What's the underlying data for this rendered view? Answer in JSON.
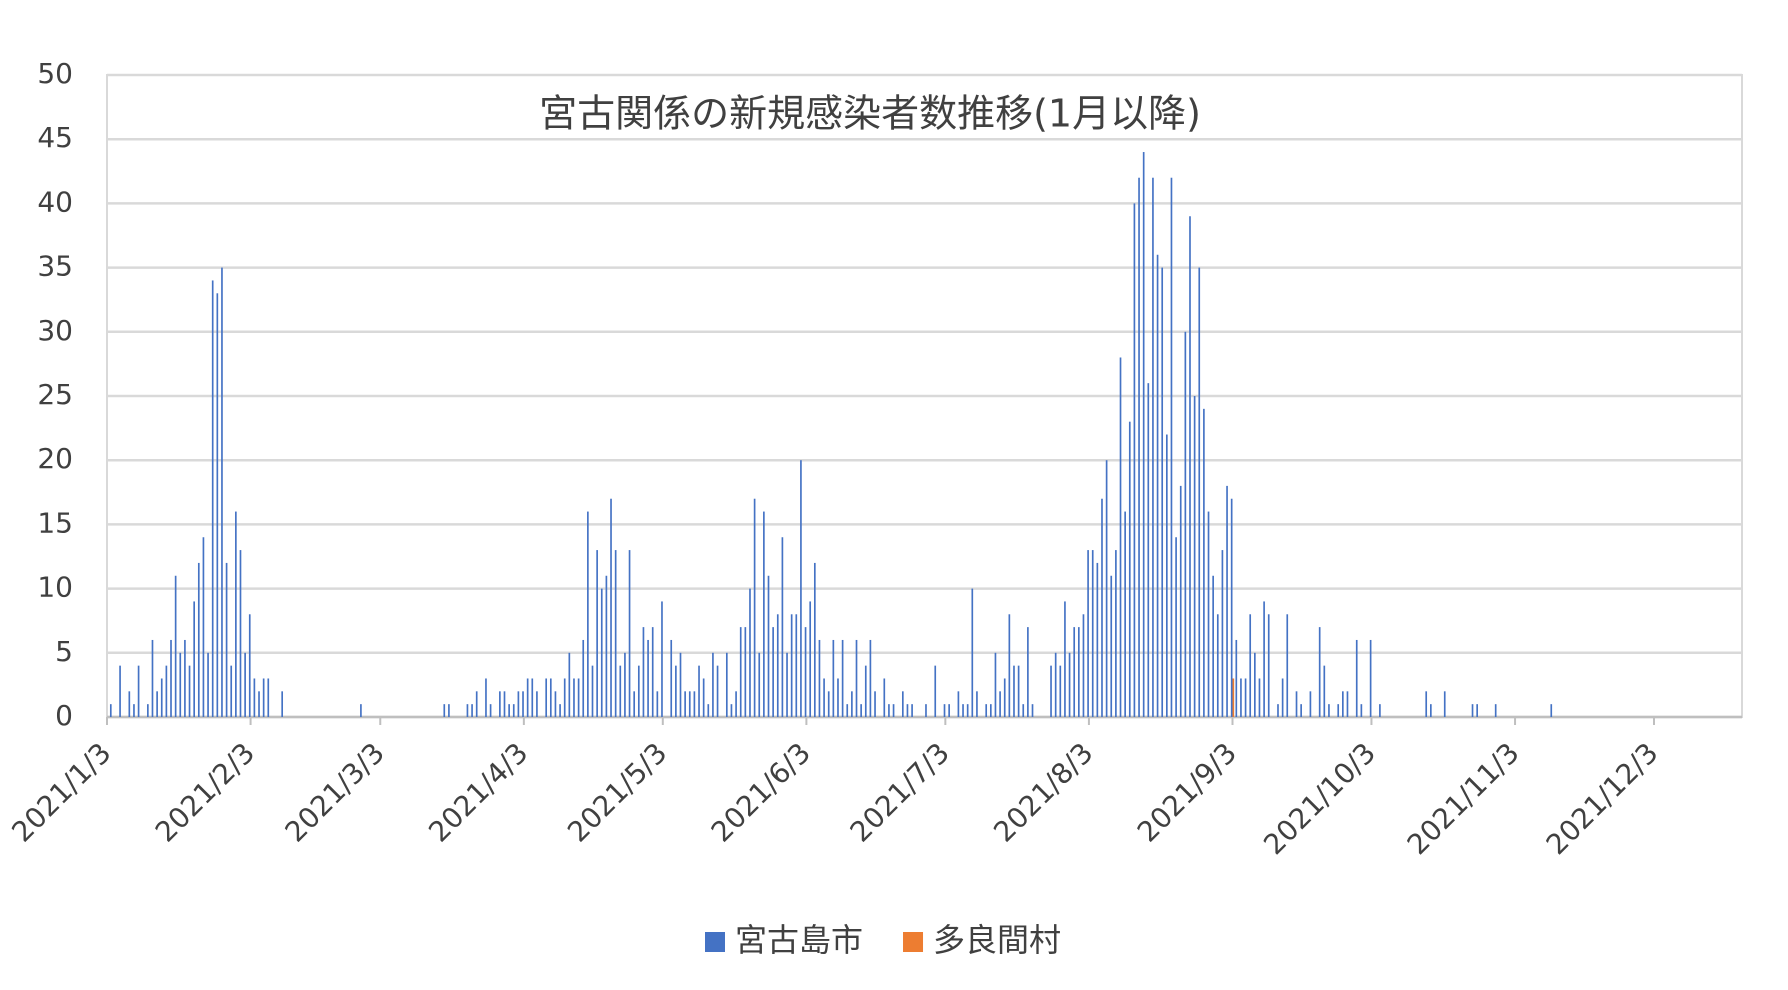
{
  "chart_data": {
    "type": "bar",
    "title": "宮古関係の新規感染者数推移(1月以降)",
    "xlim": [
      "2021/1/3",
      "2021/12/22"
    ],
    "xticks": [
      "2021/1/3",
      "2021/2/3",
      "2021/3/3",
      "2021/4/3",
      "2021/5/3",
      "2021/6/3",
      "2021/7/3",
      "2021/8/3",
      "2021/9/3",
      "2021/10/3",
      "2021/11/3",
      "2021/12/3"
    ],
    "ylim": [
      0,
      50
    ],
    "yticks": [
      0,
      5,
      10,
      15,
      20,
      25,
      30,
      35,
      40,
      45,
      50
    ],
    "grid": true,
    "legend": "bottom",
    "series": [
      {
        "name": "宮古島市",
        "color": "#4472c4",
        "x": [
          "2021/1/4",
          "2021/1/6",
          "2021/1/8",
          "2021/1/9",
          "2021/1/10",
          "2021/1/12",
          "2021/1/13",
          "2021/1/14",
          "2021/1/15",
          "2021/1/16",
          "2021/1/17",
          "2021/1/18",
          "2021/1/19",
          "2021/1/20",
          "2021/1/21",
          "2021/1/22",
          "2021/1/23",
          "2021/1/24",
          "2021/1/25",
          "2021/1/26",
          "2021/1/27",
          "2021/1/28",
          "2021/1/29",
          "2021/1/30",
          "2021/1/31",
          "2021/2/1",
          "2021/2/2",
          "2021/2/3",
          "2021/2/4",
          "2021/2/5",
          "2021/2/6",
          "2021/2/7",
          "2021/2/10",
          "2021/2/27",
          "2021/3/17",
          "2021/3/18",
          "2021/3/22",
          "2021/3/23",
          "2021/3/24",
          "2021/3/26",
          "2021/3/27",
          "2021/3/29",
          "2021/3/30",
          "2021/3/31",
          "2021/4/1",
          "2021/4/2",
          "2021/4/3",
          "2021/4/4",
          "2021/4/5",
          "2021/4/6",
          "2021/4/8",
          "2021/4/9",
          "2021/4/10",
          "2021/4/11",
          "2021/4/12",
          "2021/4/13",
          "2021/4/14",
          "2021/4/15",
          "2021/4/16",
          "2021/4/17",
          "2021/4/18",
          "2021/4/19",
          "2021/4/20",
          "2021/4/21",
          "2021/4/22",
          "2021/4/23",
          "2021/4/24",
          "2021/4/25",
          "2021/4/26",
          "2021/4/27",
          "2021/4/28",
          "2021/4/29",
          "2021/4/30",
          "2021/5/1",
          "2021/5/2",
          "2021/5/3",
          "2021/5/5",
          "2021/5/6",
          "2021/5/7",
          "2021/5/8",
          "2021/5/9",
          "2021/5/10",
          "2021/5/11",
          "2021/5/12",
          "2021/5/13",
          "2021/5/14",
          "2021/5/15",
          "2021/5/17",
          "2021/5/18",
          "2021/5/19",
          "2021/5/20",
          "2021/5/21",
          "2021/5/22",
          "2021/5/23",
          "2021/5/24",
          "2021/5/25",
          "2021/5/26",
          "2021/5/27",
          "2021/5/28",
          "2021/5/29",
          "2021/5/30",
          "2021/5/31",
          "2021/6/1",
          "2021/6/2",
          "2021/6/3",
          "2021/6/4",
          "2021/6/5",
          "2021/6/6",
          "2021/6/7",
          "2021/6/8",
          "2021/6/9",
          "2021/6/10",
          "2021/6/11",
          "2021/6/12",
          "2021/6/13",
          "2021/6/14",
          "2021/6/15",
          "2021/6/16",
          "2021/6/17",
          "2021/6/18",
          "2021/6/20",
          "2021/6/21",
          "2021/6/22",
          "2021/6/24",
          "2021/6/25",
          "2021/6/26",
          "2021/6/29",
          "2021/7/1",
          "2021/7/3",
          "2021/7/4",
          "2021/7/6",
          "2021/7/7",
          "2021/7/8",
          "2021/7/9",
          "2021/7/10",
          "2021/7/12",
          "2021/7/13",
          "2021/7/14",
          "2021/7/15",
          "2021/7/16",
          "2021/7/17",
          "2021/7/18",
          "2021/7/19",
          "2021/7/20",
          "2021/7/21",
          "2021/7/22",
          "2021/7/26",
          "2021/7/27",
          "2021/7/28",
          "2021/7/29",
          "2021/7/30",
          "2021/7/31",
          "2021/8/1",
          "2021/8/2",
          "2021/8/3",
          "2021/8/4",
          "2021/8/5",
          "2021/8/6",
          "2021/8/7",
          "2021/8/8",
          "2021/8/9",
          "2021/8/10",
          "2021/8/11",
          "2021/8/12",
          "2021/8/13",
          "2021/8/14",
          "2021/8/15",
          "2021/8/16",
          "2021/8/17",
          "2021/8/18",
          "2021/8/19",
          "2021/8/20",
          "2021/8/21",
          "2021/8/22",
          "2021/8/23",
          "2021/8/24",
          "2021/8/25",
          "2021/8/26",
          "2021/8/27",
          "2021/8/28",
          "2021/8/29",
          "2021/8/30",
          "2021/8/31",
          "2021/9/1",
          "2021/9/2",
          "2021/9/3",
          "2021/9/4",
          "2021/9/5",
          "2021/9/6",
          "2021/9/7",
          "2021/9/8",
          "2021/9/9",
          "2021/9/10",
          "2021/9/11",
          "2021/9/13",
          "2021/9/14",
          "2021/9/15",
          "2021/9/17",
          "2021/9/18",
          "2021/9/20",
          "2021/9/22",
          "2021/9/23",
          "2021/9/24",
          "2021/9/26",
          "2021/9/27",
          "2021/9/28",
          "2021/9/30",
          "2021/10/1",
          "2021/10/3",
          "2021/10/5",
          "2021/10/15",
          "2021/10/16",
          "2021/10/19",
          "2021/10/25",
          "2021/10/26",
          "2021/10/30",
          "2021/11/11"
        ],
        "values": [
          1,
          4,
          2,
          1,
          4,
          1,
          6,
          2,
          3,
          4,
          6,
          11,
          5,
          6,
          4,
          9,
          12,
          14,
          5,
          34,
          33,
          35,
          12,
          4,
          16,
          13,
          5,
          8,
          3,
          2,
          3,
          3,
          2,
          1,
          1,
          1,
          1,
          1,
          2,
          3,
          1,
          2,
          2,
          1,
          1,
          2,
          2,
          3,
          3,
          2,
          3,
          3,
          2,
          1,
          3,
          5,
          3,
          3,
          6,
          16,
          4,
          13,
          10,
          11,
          17,
          13,
          4,
          5,
          13,
          2,
          4,
          7,
          6,
          7,
          2,
          9,
          6,
          4,
          5,
          2,
          2,
          2,
          4,
          3,
          1,
          5,
          4,
          5,
          1,
          2,
          7,
          7,
          10,
          17,
          5,
          16,
          11,
          7,
          8,
          14,
          5,
          8,
          8,
          20,
          7,
          9,
          12,
          6,
          3,
          2,
          6,
          3,
          6,
          1,
          2,
          6,
          1,
          4,
          6,
          2,
          3,
          1,
          1,
          2,
          1,
          1,
          1,
          4,
          1,
          1,
          2,
          1,
          1,
          10,
          2,
          1,
          1,
          5,
          2,
          3,
          8,
          4,
          4,
          1,
          7,
          1,
          4,
          5,
          4,
          9,
          5,
          7,
          7,
          8,
          13,
          13,
          12,
          17,
          20,
          11,
          13,
          28,
          16,
          23,
          40,
          42,
          44,
          26,
          42,
          36,
          35,
          22,
          42,
          14,
          18,
          30,
          39,
          25,
          35,
          24,
          16,
          11,
          8,
          13,
          18,
          17,
          6,
          3,
          3,
          8,
          5,
          3,
          9,
          8,
          1,
          3,
          8,
          2,
          1,
          2,
          7,
          4,
          1,
          1,
          2,
          2,
          6,
          1,
          6,
          1,
          2,
          1,
          2,
          1,
          1,
          1,
          1
        ]
      },
      {
        "name": "多良間村",
        "color": "#ed7d31",
        "x": [
          "2021/9/3"
        ],
        "values": [
          3
        ]
      }
    ]
  }
}
